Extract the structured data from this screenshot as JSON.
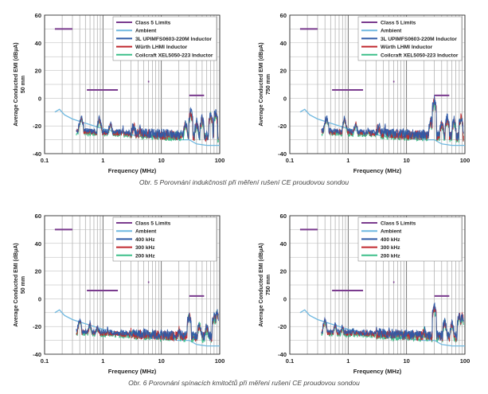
{
  "captions": [
    "Obr. 5  Porovnání indukčností při měření rušení CE proudovou sondou",
    "Obr. 6  Porovnání spínacích kmitočtů při měření rušení CE proudovou sondou"
  ],
  "colors": {
    "limits": "#7a3b8e",
    "ambient": "#6fb8e0",
    "blue": "#2d5aa8",
    "red": "#c0272d",
    "green": "#3dbf8a"
  },
  "chart_data": [
    {
      "type": "line",
      "xscale": "log",
      "xlim": [
        0.1,
        100
      ],
      "ylim": [
        -40,
        60
      ],
      "xlabel": "Frequency (MHz)",
      "ylabel": "Average Conducted EMI (dBµA)",
      "ylabel2": "50 mm",
      "xticks": [
        "0.1",
        "1",
        "10",
        "100"
      ],
      "yticks": [
        "60",
        "40",
        "20",
        "0",
        "-20",
        "-40"
      ],
      "grid": true,
      "legend_position": "top-right",
      "series": [
        {
          "name": "Class 5 Limits",
          "color": "limits"
        },
        {
          "name": "Ambient",
          "color": "ambient"
        },
        {
          "name": "3L UPIMFS0603-220M Inductor",
          "color": "blue"
        },
        {
          "name": "Würth LHMI Inductor",
          "color": "red"
        },
        {
          "name": "Coilcraft XEL5050-223 Inductor",
          "color": "green"
        }
      ],
      "limit_segments": [
        {
          "x": [
            0.15,
            0.3
          ],
          "y": 50
        },
        {
          "x": [
            0.53,
            1.8
          ],
          "y": 6
        },
        {
          "x": [
            5.9,
            6.2
          ],
          "y": 12
        },
        {
          "x": [
            30,
            54
          ],
          "y": 2
        }
      ],
      "ambient": {
        "x": [
          0.15,
          0.18,
          0.22,
          0.3,
          0.5,
          1,
          2,
          5,
          10,
          20,
          30,
          40,
          60,
          100
        ],
        "y": [
          -10,
          -8,
          -12,
          -15,
          -18,
          -22,
          -25,
          -28,
          -29,
          -30,
          -30,
          -33,
          -34,
          -34
        ]
      },
      "spikes": [
        {
          "x": 0.41,
          "y": -16
        },
        {
          "x": 0.43,
          "y": -14
        },
        {
          "x": 0.86,
          "y": -15
        },
        {
          "x": 0.9,
          "y": -17
        },
        {
          "x": 1.3,
          "y": -20
        },
        {
          "x": 1.35,
          "y": -18
        },
        {
          "x": 2.2,
          "y": -22
        },
        {
          "x": 3.2,
          "y": -22
        },
        {
          "x": 3.4,
          "y": -20
        },
        {
          "x": 4.3,
          "y": -22
        },
        {
          "x": 26,
          "y": -18
        },
        {
          "x": 32,
          "y": -10
        },
        {
          "x": 40,
          "y": -18
        },
        {
          "x": 50,
          "y": -15
        },
        {
          "x": 70,
          "y": -12
        },
        {
          "x": 85,
          "y": -10
        }
      ]
    },
    {
      "type": "line",
      "xscale": "log",
      "xlim": [
        0.1,
        100
      ],
      "ylim": [
        -40,
        60
      ],
      "xlabel": "Frequency (MHz)",
      "ylabel": "Average Conducted EMI (dBµA)",
      "ylabel2": "750 mm",
      "xticks": [
        "0.1",
        "1",
        "10",
        "100"
      ],
      "yticks": [
        "60",
        "40",
        "20",
        "0",
        "-20",
        "-40"
      ],
      "grid": true,
      "legend_position": "top-right",
      "series": [
        {
          "name": "Class 5 Limits",
          "color": "limits"
        },
        {
          "name": "Ambient",
          "color": "ambient"
        },
        {
          "name": "3L UPIMFS0603-220M Inductor",
          "color": "blue"
        },
        {
          "name": "Würth LHMI Inductor",
          "color": "red"
        },
        {
          "name": "Coilcraft XEL5050-223 Inductor",
          "color": "green"
        }
      ],
      "limit_segments": [
        {
          "x": [
            0.15,
            0.3
          ],
          "y": 50
        },
        {
          "x": [
            0.53,
            1.8
          ],
          "y": 6
        },
        {
          "x": [
            5.9,
            6.2
          ],
          "y": 12
        },
        {
          "x": [
            30,
            54
          ],
          "y": 2
        }
      ],
      "ambient": {
        "x": [
          0.15,
          0.18,
          0.22,
          0.3,
          0.5,
          1,
          2,
          5,
          10,
          20,
          30,
          40,
          60,
          100
        ],
        "y": [
          -10,
          -8,
          -12,
          -15,
          -18,
          -22,
          -25,
          -28,
          -29,
          -30,
          -30,
          -33,
          -34,
          -34
        ]
      },
      "spikes": [
        {
          "x": 0.41,
          "y": -16
        },
        {
          "x": 0.43,
          "y": -14
        },
        {
          "x": 0.86,
          "y": -15
        },
        {
          "x": 0.9,
          "y": -17
        },
        {
          "x": 1.3,
          "y": -20
        },
        {
          "x": 1.35,
          "y": -18
        },
        {
          "x": 2.2,
          "y": -22
        },
        {
          "x": 3.2,
          "y": -22
        },
        {
          "x": 3.4,
          "y": -20
        },
        {
          "x": 4.3,
          "y": -22
        },
        {
          "x": 26,
          "y": -16
        },
        {
          "x": 30,
          "y": -2
        },
        {
          "x": 40,
          "y": -18
        },
        {
          "x": 50,
          "y": -14
        },
        {
          "x": 65,
          "y": -16
        },
        {
          "x": 85,
          "y": -14
        }
      ]
    },
    {
      "type": "line",
      "xscale": "log",
      "xlim": [
        0.1,
        100
      ],
      "ylim": [
        -40,
        60
      ],
      "xlabel": "Frequency (MHz)",
      "ylabel": "Average Conducted EMI (dBµA)",
      "ylabel2": "50 mm",
      "xticks": [
        "0.1",
        "1",
        "10",
        "100"
      ],
      "yticks": [
        "60",
        "40",
        "20",
        "0",
        "-20",
        "-40"
      ],
      "grid": true,
      "legend_position": "top-right",
      "series": [
        {
          "name": "Class 5 Limits",
          "color": "limits"
        },
        {
          "name": "Ambient",
          "color": "ambient"
        },
        {
          "name": "400 kHz",
          "color": "blue"
        },
        {
          "name": "300 kHz",
          "color": "red"
        },
        {
          "name": "200 kHz",
          "color": "green"
        }
      ],
      "limit_segments": [
        {
          "x": [
            0.15,
            0.3
          ],
          "y": 50
        },
        {
          "x": [
            0.53,
            1.8
          ],
          "y": 6
        },
        {
          "x": [
            5.9,
            6.2
          ],
          "y": 12
        },
        {
          "x": [
            30,
            54
          ],
          "y": 2
        }
      ],
      "ambient": {
        "x": [
          0.15,
          0.18,
          0.22,
          0.3,
          0.5,
          1,
          2,
          5,
          10,
          20,
          30,
          40,
          60,
          100
        ],
        "y": [
          -10,
          -8,
          -12,
          -15,
          -18,
          -22,
          -25,
          -28,
          -29,
          -30,
          -30,
          -33,
          -34,
          -34
        ]
      },
      "spikes": [
        {
          "x": 0.2,
          "y": -20
        },
        {
          "x": 0.4,
          "y": -15
        },
        {
          "x": 0.6,
          "y": -18
        },
        {
          "x": 0.8,
          "y": -20
        },
        {
          "x": 1.2,
          "y": -22
        },
        {
          "x": 2,
          "y": -24
        },
        {
          "x": 3,
          "y": -23
        },
        {
          "x": 5,
          "y": -24
        },
        {
          "x": 8,
          "y": -25
        },
        {
          "x": 20,
          "y": -22
        },
        {
          "x": 30,
          "y": -12
        },
        {
          "x": 45,
          "y": -18
        },
        {
          "x": 60,
          "y": -20
        },
        {
          "x": 80,
          "y": -12
        },
        {
          "x": 90,
          "y": -10
        }
      ]
    },
    {
      "type": "line",
      "xscale": "log",
      "xlim": [
        0.1,
        100
      ],
      "ylim": [
        -40,
        60
      ],
      "xlabel": "Frequency (MHz)",
      "ylabel": "Average Conducted EMI (dBµA)",
      "ylabel2": "750 mm",
      "xticks": [
        "0.1",
        "1",
        "10",
        "100"
      ],
      "yticks": [
        "60",
        "40",
        "20",
        "0",
        "-20",
        "-40"
      ],
      "grid": true,
      "legend_position": "top-right",
      "series": [
        {
          "name": "Class 5 Limits",
          "color": "limits"
        },
        {
          "name": "Ambient",
          "color": "ambient"
        },
        {
          "name": "400 kHz",
          "color": "blue"
        },
        {
          "name": "300 kHz",
          "color": "red"
        },
        {
          "name": "200 kHz",
          "color": "green"
        }
      ],
      "limit_segments": [
        {
          "x": [
            0.15,
            0.3
          ],
          "y": 50
        },
        {
          "x": [
            0.53,
            1.8
          ],
          "y": 6
        },
        {
          "x": [
            5.9,
            6.2
          ],
          "y": 12
        },
        {
          "x": [
            30,
            54
          ],
          "y": 2
        }
      ],
      "ambient": {
        "x": [
          0.15,
          0.18,
          0.22,
          0.3,
          0.5,
          1,
          2,
          5,
          10,
          20,
          30,
          40,
          60,
          100
        ],
        "y": [
          -10,
          -8,
          -12,
          -15,
          -18,
          -22,
          -25,
          -28,
          -29,
          -30,
          -30,
          -33,
          -34,
          -34
        ]
      },
      "spikes": [
        {
          "x": 0.2,
          "y": -20
        },
        {
          "x": 0.4,
          "y": -15
        },
        {
          "x": 0.6,
          "y": -18
        },
        {
          "x": 0.8,
          "y": -20
        },
        {
          "x": 1.2,
          "y": -22
        },
        {
          "x": 2,
          "y": -24
        },
        {
          "x": 3,
          "y": -23
        },
        {
          "x": 5,
          "y": -24
        },
        {
          "x": 8,
          "y": -25
        },
        {
          "x": 20,
          "y": -22
        },
        {
          "x": 30,
          "y": -6
        },
        {
          "x": 45,
          "y": -16
        },
        {
          "x": 60,
          "y": -18
        },
        {
          "x": 80,
          "y": -12
        },
        {
          "x": 90,
          "y": -12
        }
      ]
    }
  ]
}
